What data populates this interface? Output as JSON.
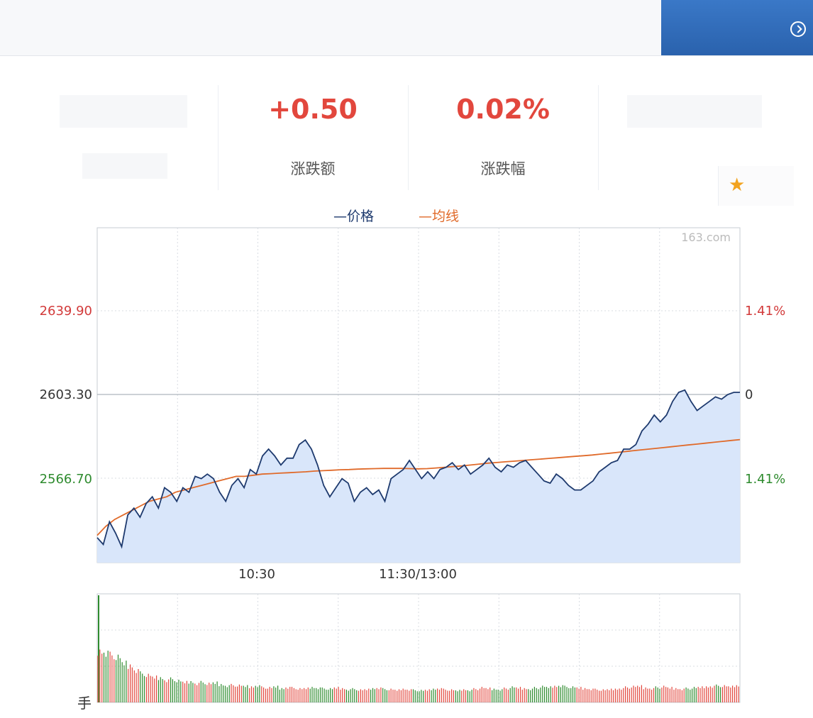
{
  "stats": {
    "change": {
      "value": "+0.50",
      "label": "涨跌额"
    },
    "change_pct": {
      "value": "0.02%",
      "label": "涨跌幅"
    }
  },
  "legend": {
    "price": "—价格",
    "avg": "—均线"
  },
  "watermark": "163.com",
  "colors": {
    "price_line": "#1e3a6e",
    "avg_line": "#e06a2a",
    "fill": "#d9e6fa",
    "up": "#e2473d",
    "down": "#2e8b2e"
  },
  "chart_data": {
    "type": "line",
    "x_ticks": [
      "10:30",
      "11:30/13:00"
    ],
    "y_left_ticks": [
      "2639.90",
      "2603.30",
      "2566.70"
    ],
    "y_right_ticks": [
      "1.41%",
      "0",
      "1.41%"
    ],
    "ylim": [
      2529.0,
      2676.5
    ],
    "price": [
      2540,
      2537,
      2547,
      2542,
      2536,
      2550,
      2553,
      2549,
      2555,
      2558,
      2553,
      2562,
      2560,
      2556,
      2562,
      2560,
      2567,
      2566,
      2568,
      2566,
      2560,
      2556,
      2563,
      2566,
      2562,
      2570,
      2568,
      2576,
      2579,
      2576,
      2572,
      2575,
      2575,
      2581,
      2583,
      2579,
      2572,
      2563,
      2558,
      2562,
      2566,
      2564,
      2556,
      2560,
      2562,
      2559,
      2561,
      2556,
      2566,
      2568,
      2570,
      2574,
      2570,
      2566,
      2569,
      2566,
      2570,
      2571,
      2573,
      2570,
      2572,
      2568,
      2570,
      2572,
      2575,
      2571,
      2569,
      2572,
      2571,
      2573,
      2574,
      2571,
      2568,
      2565,
      2564,
      2568,
      2566,
      2563,
      2561,
      2561,
      2563,
      2565,
      2569,
      2571,
      2573,
      2574,
      2579,
      2579,
      2581,
      2587,
      2590,
      2594,
      2591,
      2594,
      2600,
      2604,
      2605,
      2600,
      2596,
      2598,
      2600,
      2602,
      2601,
      2603,
      2604,
      2604
    ],
    "avg": [
      2541,
      2545,
      2548,
      2550,
      2552,
      2554,
      2556,
      2557,
      2558,
      2560,
      2561,
      2562,
      2563,
      2564,
      2565,
      2566,
      2567,
      2567,
      2567.5,
      2568,
      2568.2,
      2568.4,
      2568.6,
      2568.8,
      2569,
      2569.3,
      2569.5,
      2569.7,
      2569.9,
      2570,
      2570.2,
      2570.3,
      2570.4,
      2570.5,
      2570.5,
      2570.5,
      2570.4,
      2570.3,
      2570.4,
      2570.7,
      2571,
      2571.3,
      2571.6,
      2572,
      2572.4,
      2572.8,
      2573.1,
      2573.4,
      2573.7,
      2574,
      2574.3,
      2574.6,
      2574.9,
      2575.2,
      2575.5,
      2575.8,
      2576.1,
      2576.4,
      2576.8,
      2577.2,
      2577.6,
      2578,
      2578.4,
      2578.8,
      2579.2,
      2579.6,
      2580,
      2580.4,
      2580.8,
      2581.2,
      2581.6,
      2582,
      2582.4,
      2582.8,
      2583.2
    ],
    "volume": [
      92,
      90,
      85,
      80,
      70,
      66,
      58,
      52,
      48,
      45,
      44,
      40,
      42,
      38,
      36,
      37,
      34,
      36,
      33,
      35,
      32,
      30,
      31,
      30,
      29,
      28,
      30,
      27,
      26,
      28,
      25,
      27,
      26,
      24,
      25,
      27,
      26,
      25,
      24,
      26,
      25,
      23,
      24,
      22,
      23,
      25,
      26,
      24,
      23,
      22,
      24,
      23,
      22,
      21,
      22,
      24,
      25,
      23,
      22,
      21,
      23,
      22,
      24,
      26,
      25,
      24,
      23,
      25,
      27,
      26,
      25,
      24,
      26,
      28,
      27,
      29,
      30,
      28,
      27,
      26,
      25,
      24,
      23,
      22,
      23,
      24,
      25,
      27,
      28,
      29,
      26,
      25,
      27,
      28,
      26,
      25,
      24,
      25,
      26,
      27,
      28,
      29,
      30,
      29,
      28,
      30
    ],
    "volume_label": "手"
  }
}
